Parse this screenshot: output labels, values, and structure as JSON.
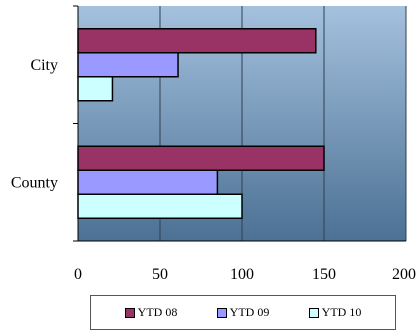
{
  "chart_data": {
    "type": "bar",
    "orientation": "horizontal",
    "categories": [
      "City",
      "County"
    ],
    "series": [
      {
        "name": "YTD 08",
        "values": [
          145,
          150
        ],
        "color": "#993366"
      },
      {
        "name": "YTD 09",
        "values": [
          61,
          85
        ],
        "color": "#9999FF"
      },
      {
        "name": "YTD 10",
        "values": [
          21,
          100
        ],
        "color": "#CCFFFF"
      }
    ],
    "xlim": [
      0,
      200
    ],
    "x_ticks": [
      0,
      50,
      100,
      150,
      200
    ],
    "grid": true,
    "legend_position": "bottom",
    "plot_background": "gradient steel-blue"
  }
}
